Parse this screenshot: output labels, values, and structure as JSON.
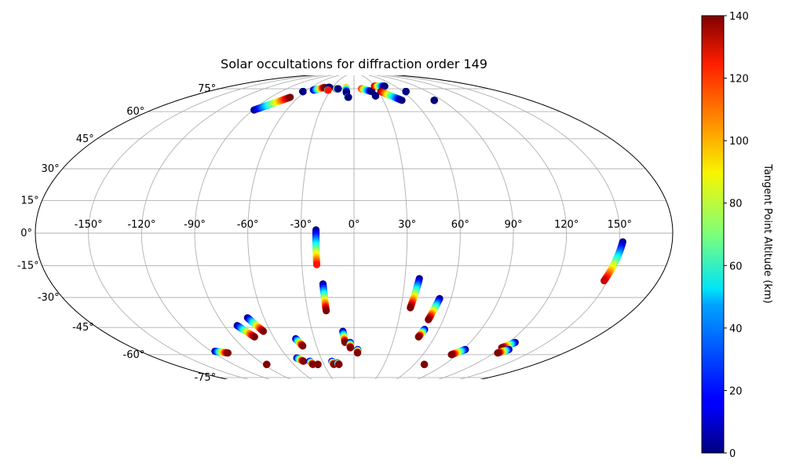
{
  "chart_data": {
    "type": "scatter",
    "projection": "mollweide",
    "title": "Solar occultations for diffraction order 149",
    "x_ticks": [
      "-150°",
      "-120°",
      "-90°",
      "-60°",
      "-30°",
      "0°",
      "30°",
      "60°",
      "90°",
      "120°",
      "150°"
    ],
    "y_ticks": [
      "-75°",
      "-60°",
      "-45°",
      "-30°",
      "-15°",
      "0°",
      "15°",
      "30°",
      "45°",
      "60°",
      "75°"
    ],
    "grid": true,
    "colorbar": {
      "label": "Tangent Point Altitude (km)",
      "ticks": [
        "0",
        "20",
        "40",
        "60",
        "80",
        "100",
        "120",
        "140"
      ],
      "range": [
        0,
        140
      ],
      "colormap": "jet"
    },
    "tracks": [
      {
        "lon": [
          -89,
          -69
        ],
        "lat": [
          61,
          69
        ],
        "alt": [
          0,
          140
        ]
      },
      {
        "lon": [
          -63,
          -63
        ],
        "lat": [
          73,
          73
        ],
        "alt": [
          0,
          0
        ]
      },
      {
        "lon": [
          -52,
          -41
        ],
        "lat": [
          74,
          76
        ],
        "alt": [
          0,
          140
        ]
      },
      {
        "lon": [
          -36,
          -34
        ],
        "lat": [
          76,
          76
        ],
        "alt": [
          0,
          0
        ]
      },
      {
        "lon": [
          -34,
          -33
        ],
        "lat": [
          74,
          74
        ],
        "alt": [
          0,
          120
        ]
      },
      {
        "lon": [
          -24,
          -21
        ],
        "lat": [
          75,
          75
        ],
        "alt": [
          140,
          0
        ]
      },
      {
        "lon": [
          -11,
          -9
        ],
        "lat": [
          76,
          72
        ],
        "alt": [
          100,
          0
        ]
      },
      {
        "lon": [
          -7,
          -6
        ],
        "lat": [
          69,
          69
        ],
        "alt": [
          100,
          0
        ]
      },
      {
        "lon": [
          10,
          22
        ],
        "lat": [
          75,
          73
        ],
        "alt": [
          120,
          0
        ]
      },
      {
        "lon": [
          24,
          24
        ],
        "lat": [
          70,
          70
        ],
        "alt": [
          0,
          0
        ]
      },
      {
        "lon": [
          30,
          45
        ],
        "lat": [
          77,
          77
        ],
        "alt": [
          140,
          0
        ]
      },
      {
        "lon": [
          33,
          49
        ],
        "lat": [
          73,
          67
        ],
        "alt": [
          140,
          0
        ]
      },
      {
        "lon": [
          64,
          64
        ],
        "lat": [
          73,
          73
        ],
        "alt": [
          0,
          0
        ]
      },
      {
        "lon": [
          82,
          82
        ],
        "lat": [
          67,
          67
        ],
        "alt": [
          0,
          0
        ]
      },
      {
        "lon": [
          -21.5,
          -21.5
        ],
        "lat": [
          1.5,
          -14.5
        ],
        "alt": [
          0,
          120
        ]
      },
      {
        "lon": [
          -18.5,
          -18
        ],
        "lat": [
          -23.5,
          -36.5
        ],
        "alt": [
          0,
          140
        ]
      },
      {
        "lon": [
          38.5,
          36
        ],
        "lat": [
          -21,
          -35
        ],
        "alt": [
          0,
          140
        ]
      },
      {
        "lon": [
          53,
          50
        ],
        "lat": [
          -30.5,
          -41
        ],
        "alt": [
          0,
          140
        ]
      },
      {
        "lon": [
          152,
          148
        ],
        "lat": [
          -4,
          -22
        ],
        "alt": [
          0,
          130
        ]
      },
      {
        "lon": [
          -81,
          -74
        ],
        "lat": [
          -44,
          -50
        ],
        "alt": [
          0,
          140
        ]
      },
      {
        "lon": [
          -71,
          -65
        ],
        "lat": [
          -40,
          -47
        ],
        "alt": [
          0,
          140
        ]
      },
      {
        "lon": [
          -44,
          -41
        ],
        "lat": [
          -51,
          -55
        ],
        "alt": [
          0,
          140
        ]
      },
      {
        "lon": [
          -8,
          -7
        ],
        "lat": [
          -47,
          -53
        ],
        "alt": [
          0,
          140
        ]
      },
      {
        "lon": [
          -3,
          -3
        ],
        "lat": [
          -53,
          -56
        ],
        "alt": [
          0,
          140
        ]
      },
      {
        "lon": [
          3,
          3
        ],
        "lat": [
          -57,
          -59
        ],
        "alt": [
          0,
          140
        ]
      },
      {
        "lon": [
          50,
          48
        ],
        "lat": [
          -46,
          -50
        ],
        "alt": [
          0,
          140
        ]
      },
      {
        "lon": [
          -117,
          -108
        ],
        "lat": [
          -58,
          -59
        ],
        "alt": [
          0,
          140
        ]
      },
      {
        "lon": [
          -52,
          -48
        ],
        "lat": [
          -62,
          -64
        ],
        "alt": [
          0,
          140
        ]
      },
      {
        "lon": [
          -42,
          -41
        ],
        "lat": [
          -64,
          -66
        ],
        "alt": [
          0,
          140
        ]
      },
      {
        "lon": [
          -21,
          -20
        ],
        "lat": [
          -64,
          -66
        ],
        "alt": [
          0,
          140
        ]
      },
      {
        "lon": [
          -16,
          -15
        ],
        "lat": [
          -65,
          -66
        ],
        "alt": [
          0,
          140
        ]
      },
      {
        "lon": [
          -87,
          -87
        ],
        "lat": [
          -66,
          -66
        ],
        "alt": [
          40,
          140
        ]
      },
      {
        "lon": [
          -36,
          -36
        ],
        "lat": [
          -66,
          -66
        ],
        "alt": [
          140,
          140
        ]
      },
      {
        "lon": [
          70,
          70
        ],
        "lat": [
          -66,
          -66
        ],
        "alt": [
          0,
          140
        ]
      },
      {
        "lon": [
          92,
          85
        ],
        "lat": [
          -57,
          -60
        ],
        "alt": [
          0,
          140
        ]
      },
      {
        "lon": [
          125,
          120
        ],
        "lat": [
          -53,
          -56
        ],
        "alt": [
          0,
          140
        ]
      },
      {
        "lon": [
          128,
          123
        ],
        "lat": [
          -57,
          -59
        ],
        "alt": [
          0,
          140
        ]
      }
    ]
  }
}
